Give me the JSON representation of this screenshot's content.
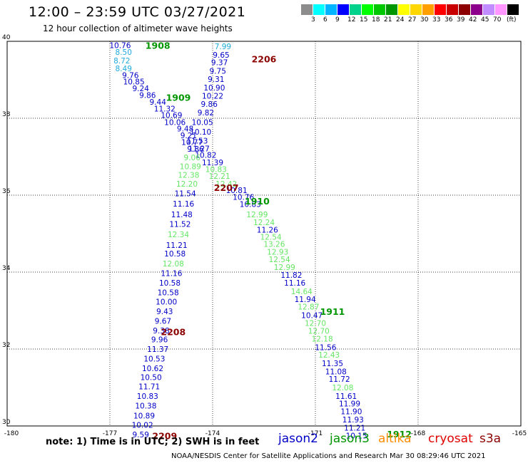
{
  "title": "12:00 – 23:59 UTC 03/27/2021",
  "subtitle": "12 hour collection of altimeter wave heights",
  "color_scale": {
    "unit": "(ft)",
    "colors": [
      "#8c8c8c",
      "#00ffff",
      "#00b4ff",
      "#0000ff",
      "#00d28c",
      "#00ff00",
      "#00c800",
      "#009600",
      "#ffff00",
      "#ffd700",
      "#ffa000",
      "#ff0000",
      "#c80000",
      "#8c0000",
      "#8c008c",
      "#c08cff",
      "#ff96ff",
      "#000000"
    ],
    "labels": [
      "3",
      "6",
      "9",
      "12",
      "15",
      "18",
      "21",
      "24",
      "27",
      "30",
      "33",
      "36",
      "39",
      "42",
      "45",
      "70"
    ]
  },
  "note": "note: 1) Time is in UTC; 2) SWH is in feet",
  "satellites": [
    {
      "label": "jason2",
      "color": "#0000c8"
    },
    {
      "label": "jason3",
      "color": "#009600"
    },
    {
      "label": "altika",
      "color": "#ff8c00"
    },
    {
      "label": "cryosat",
      "color": "#e00000"
    },
    {
      "label": "s3a",
      "color": "#8c0000"
    }
  ],
  "footer": "NOAA/NESDIS Center for Satellite Applications and Research    Mar 30 08:29:46 UTC 2021",
  "chart_data": {
    "type": "scatter",
    "title": "12:00 – 23:59 UTC 03/27/2021",
    "subtitle": "12 hour collection of altimeter wave heights",
    "xlabel": "",
    "ylabel": "",
    "xlim": [
      -180,
      -165
    ],
    "ylim": [
      30,
      40
    ],
    "x_ticks": [
      "-180",
      "-177",
      "-174",
      "-171",
      "-168",
      "-165"
    ],
    "y_ticks": [
      "40",
      "38",
      "36",
      "34",
      "32",
      "30"
    ],
    "grid": true,
    "colors": {
      "dark_blue": "#0000c8",
      "light_green": "#64e664",
      "light_blue": "#1eaadc",
      "dark_green": "#009600",
      "dark_red": "#8c0000"
    },
    "series": [
      {
        "track": "A",
        "points": [
          {
            "x": -176.7,
            "y": 39.9,
            "v": "10.76",
            "c": "dark_blue"
          },
          {
            "x": -176.6,
            "y": 39.72,
            "v": "8.50",
            "c": "light_blue"
          },
          {
            "x": -176.65,
            "y": 39.5,
            "v": "8.72",
            "c": "light_blue"
          },
          {
            "x": -176.6,
            "y": 39.3,
            "v": "8.49",
            "c": "light_blue"
          },
          {
            "x": -176.4,
            "y": 39.12,
            "v": "9.76",
            "c": "dark_blue"
          },
          {
            "x": -176.3,
            "y": 38.95,
            "v": "10.85",
            "c": "dark_blue"
          },
          {
            "x": -176.1,
            "y": 38.78,
            "v": "9.24",
            "c": "dark_blue"
          },
          {
            "x": -175.9,
            "y": 38.6,
            "v": "9.86",
            "c": "dark_blue"
          },
          {
            "x": -175.6,
            "y": 38.43,
            "v": "9.44",
            "c": "dark_blue"
          },
          {
            "x": -175.4,
            "y": 38.25,
            "v": "11.32",
            "c": "dark_blue"
          },
          {
            "x": -175.2,
            "y": 38.08,
            "v": "10.69",
            "c": "dark_blue"
          },
          {
            "x": -175.1,
            "y": 37.9,
            "v": "10.06",
            "c": "dark_blue"
          },
          {
            "x": -174.8,
            "y": 37.73,
            "v": "9.48",
            "c": "dark_blue"
          },
          {
            "x": -174.7,
            "y": 37.56,
            "v": "9.21",
            "c": "dark_blue"
          },
          {
            "x": -174.6,
            "y": 37.38,
            "v": "10.77",
            "c": "dark_blue"
          },
          {
            "x": -174.4,
            "y": 37.21,
            "v": "11.27",
            "c": "dark_blue"
          },
          {
            "x": -174.2,
            "y": 37.05,
            "v": "10.82",
            "c": "dark_blue"
          },
          {
            "x": -174.0,
            "y": 36.85,
            "v": "11.39",
            "c": "dark_blue"
          },
          {
            "x": -173.9,
            "y": 36.68,
            "v": "10.83",
            "c": "light_green"
          },
          {
            "x": -173.8,
            "y": 36.5,
            "v": "12.21",
            "c": "light_green"
          },
          {
            "x": -173.6,
            "y": 36.3,
            "v": "12.42",
            "c": "light_green"
          },
          {
            "x": -173.3,
            "y": 36.13,
            "v": "10.81",
            "c": "dark_blue"
          },
          {
            "x": -173.1,
            "y": 35.95,
            "v": "10.76",
            "c": "dark_blue"
          },
          {
            "x": -172.9,
            "y": 35.77,
            "v": "10.83",
            "c": "dark_blue"
          },
          {
            "x": -172.7,
            "y": 35.5,
            "v": "12.99",
            "c": "light_green"
          },
          {
            "x": -172.5,
            "y": 35.3,
            "v": "12.24",
            "c": "light_green"
          },
          {
            "x": -172.4,
            "y": 35.1,
            "v": "11.26",
            "c": "dark_blue"
          },
          {
            "x": -172.3,
            "y": 34.92,
            "v": "12.54",
            "c": "light_green"
          },
          {
            "x": -172.2,
            "y": 34.73,
            "v": "13.26",
            "c": "light_green"
          },
          {
            "x": -172.1,
            "y": 34.53,
            "v": "12.93",
            "c": "light_green"
          },
          {
            "x": -172.05,
            "y": 34.33,
            "v": "12.54",
            "c": "light_green"
          },
          {
            "x": -171.9,
            "y": 34.13,
            "v": "12.99",
            "c": "light_green"
          },
          {
            "x": -171.7,
            "y": 33.93,
            "v": "11.82",
            "c": "dark_blue"
          },
          {
            "x": -171.6,
            "y": 33.72,
            "v": "11.16",
            "c": "dark_blue"
          },
          {
            "x": -171.4,
            "y": 33.5,
            "v": "14.64",
            "c": "light_green"
          },
          {
            "x": -171.3,
            "y": 33.3,
            "v": "11.94",
            "c": "dark_blue"
          },
          {
            "x": -171.2,
            "y": 33.1,
            "v": "12.87",
            "c": "light_green"
          },
          {
            "x": -171.1,
            "y": 32.88,
            "v": "10.47",
            "c": "dark_blue"
          },
          {
            "x": -171.0,
            "y": 32.68,
            "v": "12.70",
            "c": "light_green"
          },
          {
            "x": -170.9,
            "y": 32.47,
            "v": "12.70",
            "c": "light_green"
          },
          {
            "x": -170.8,
            "y": 32.27,
            "v": "12.18",
            "c": "light_green"
          },
          {
            "x": -170.7,
            "y": 32.05,
            "v": "11.56",
            "c": "dark_blue"
          },
          {
            "x": -170.6,
            "y": 31.85,
            "v": "12.43",
            "c": "light_green"
          },
          {
            "x": -170.5,
            "y": 31.63,
            "v": "11.35",
            "c": "dark_blue"
          },
          {
            "x": -170.4,
            "y": 31.42,
            "v": "11.08",
            "c": "dark_blue"
          },
          {
            "x": -170.3,
            "y": 31.22,
            "v": "11.72",
            "c": "dark_blue"
          },
          {
            "x": -170.2,
            "y": 31.0,
            "v": "12.08",
            "c": "light_green"
          },
          {
            "x": -170.1,
            "y": 30.78,
            "v": "11.61",
            "c": "dark_blue"
          },
          {
            "x": -170.0,
            "y": 30.58,
            "v": "11.99",
            "c": "dark_blue"
          },
          {
            "x": -169.95,
            "y": 30.38,
            "v": "11.90",
            "c": "dark_blue"
          },
          {
            "x": -169.9,
            "y": 30.17,
            "v": "11.93",
            "c": "dark_blue"
          },
          {
            "x": -169.85,
            "y": 29.95,
            "v": "11.21",
            "c": "dark_blue"
          },
          {
            "x": -169.8,
            "y": 29.75,
            "v": "10.15",
            "c": "dark_blue"
          }
        ]
      },
      {
        "track": "B",
        "points": [
          {
            "x": -173.7,
            "y": 39.87,
            "v": "7.99",
            "c": "light_blue"
          },
          {
            "x": -173.75,
            "y": 39.65,
            "v": "9.65",
            "c": "dark_blue"
          },
          {
            "x": -173.8,
            "y": 39.45,
            "v": "9.37",
            "c": "dark_blue"
          },
          {
            "x": -173.85,
            "y": 39.23,
            "v": "9.75",
            "c": "dark_blue"
          },
          {
            "x": -173.9,
            "y": 39.02,
            "v": "9.31",
            "c": "dark_blue"
          },
          {
            "x": -173.95,
            "y": 38.8,
            "v": "10.90",
            "c": "dark_blue"
          },
          {
            "x": -174.0,
            "y": 38.58,
            "v": "10.22",
            "c": "dark_blue"
          },
          {
            "x": -174.1,
            "y": 38.37,
            "v": "9.86",
            "c": "dark_blue"
          },
          {
            "x": -174.2,
            "y": 38.15,
            "v": "9.82",
            "c": "dark_blue"
          },
          {
            "x": -174.3,
            "y": 37.9,
            "v": "10.05",
            "c": "dark_blue"
          },
          {
            "x": -174.35,
            "y": 37.65,
            "v": "10.10",
            "c": "dark_blue"
          },
          {
            "x": -174.45,
            "y": 37.42,
            "v": "11.53",
            "c": "dark_blue"
          },
          {
            "x": -174.5,
            "y": 37.2,
            "v": "9.86",
            "c": "dark_blue"
          },
          {
            "x": -174.6,
            "y": 36.98,
            "v": "9.06",
            "c": "light_green"
          },
          {
            "x": -174.65,
            "y": 36.75,
            "v": "10.89",
            "c": "light_green"
          },
          {
            "x": -174.7,
            "y": 36.53,
            "v": "12.38",
            "c": "light_green"
          },
          {
            "x": -174.75,
            "y": 36.3,
            "v": "12.20",
            "c": "light_green"
          },
          {
            "x": -174.8,
            "y": 36.05,
            "v": "11.54",
            "c": "dark_blue"
          },
          {
            "x": -174.85,
            "y": 35.78,
            "v": "11.16",
            "c": "dark_blue"
          },
          {
            "x": -174.9,
            "y": 35.5,
            "v": "11.48",
            "c": "dark_blue"
          },
          {
            "x": -174.95,
            "y": 35.25,
            "v": "11.52",
            "c": "dark_blue"
          },
          {
            "x": -175.0,
            "y": 34.98,
            "v": "12.34",
            "c": "light_green"
          },
          {
            "x": -175.05,
            "y": 34.7,
            "v": "11.21",
            "c": "dark_blue"
          },
          {
            "x": -175.1,
            "y": 34.48,
            "v": "10.58",
            "c": "dark_blue"
          },
          {
            "x": -175.15,
            "y": 34.22,
            "v": "12.08",
            "c": "light_green"
          },
          {
            "x": -175.2,
            "y": 33.97,
            "v": "11.16",
            "c": "dark_blue"
          },
          {
            "x": -175.25,
            "y": 33.72,
            "v": "10.58",
            "c": "dark_blue"
          },
          {
            "x": -175.3,
            "y": 33.47,
            "v": "10.58",
            "c": "dark_blue"
          },
          {
            "x": -175.35,
            "y": 33.23,
            "v": "10.00",
            "c": "dark_blue"
          },
          {
            "x": -175.4,
            "y": 32.98,
            "v": "9.43",
            "c": "dark_blue"
          },
          {
            "x": -175.45,
            "y": 32.73,
            "v": "9.67",
            "c": "dark_blue"
          },
          {
            "x": -175.5,
            "y": 32.48,
            "v": "9.38",
            "c": "dark_blue"
          },
          {
            "x": -175.55,
            "y": 32.25,
            "v": "9.96",
            "c": "dark_blue"
          },
          {
            "x": -175.6,
            "y": 32.0,
            "v": "11.37",
            "c": "dark_blue"
          },
          {
            "x": -175.7,
            "y": 31.75,
            "v": "10.53",
            "c": "dark_blue"
          },
          {
            "x": -175.75,
            "y": 31.5,
            "v": "10.62",
            "c": "dark_blue"
          },
          {
            "x": -175.8,
            "y": 31.27,
            "v": "10.50",
            "c": "dark_blue"
          },
          {
            "x": -175.85,
            "y": 31.03,
            "v": "11.71",
            "c": "dark_blue"
          },
          {
            "x": -175.9,
            "y": 30.78,
            "v": "10.83",
            "c": "dark_blue"
          },
          {
            "x": -175.95,
            "y": 30.53,
            "v": "10.38",
            "c": "dark_blue"
          },
          {
            "x": -176.0,
            "y": 30.27,
            "v": "10.89",
            "c": "dark_blue"
          },
          {
            "x": -176.05,
            "y": 30.03,
            "v": "10.02",
            "c": "dark_blue"
          },
          {
            "x": -176.1,
            "y": 29.78,
            "v": "9.59",
            "c": "dark_blue"
          }
        ]
      }
    ],
    "time_labels": [
      {
        "x": -175.6,
        "y": 39.9,
        "text": "1908",
        "c": "dark_green"
      },
      {
        "x": -172.5,
        "y": 39.55,
        "text": "2206",
        "c": "dark_red"
      },
      {
        "x": -175.0,
        "y": 38.55,
        "text": "1909",
        "c": "dark_green"
      },
      {
        "x": -173.6,
        "y": 36.2,
        "text": "2207",
        "c": "dark_red"
      },
      {
        "x": -172.7,
        "y": 35.85,
        "text": "1910",
        "c": "dark_green"
      },
      {
        "x": -170.5,
        "y": 32.98,
        "text": "1911",
        "c": "dark_green"
      },
      {
        "x": -175.15,
        "y": 32.45,
        "text": "2208",
        "c": "dark_red"
      },
      {
        "x": -168.55,
        "y": 29.8,
        "text": "1912",
        "c": "dark_green"
      },
      {
        "x": -175.4,
        "y": 29.75,
        "text": "2209",
        "c": "dark_red"
      }
    ]
  }
}
